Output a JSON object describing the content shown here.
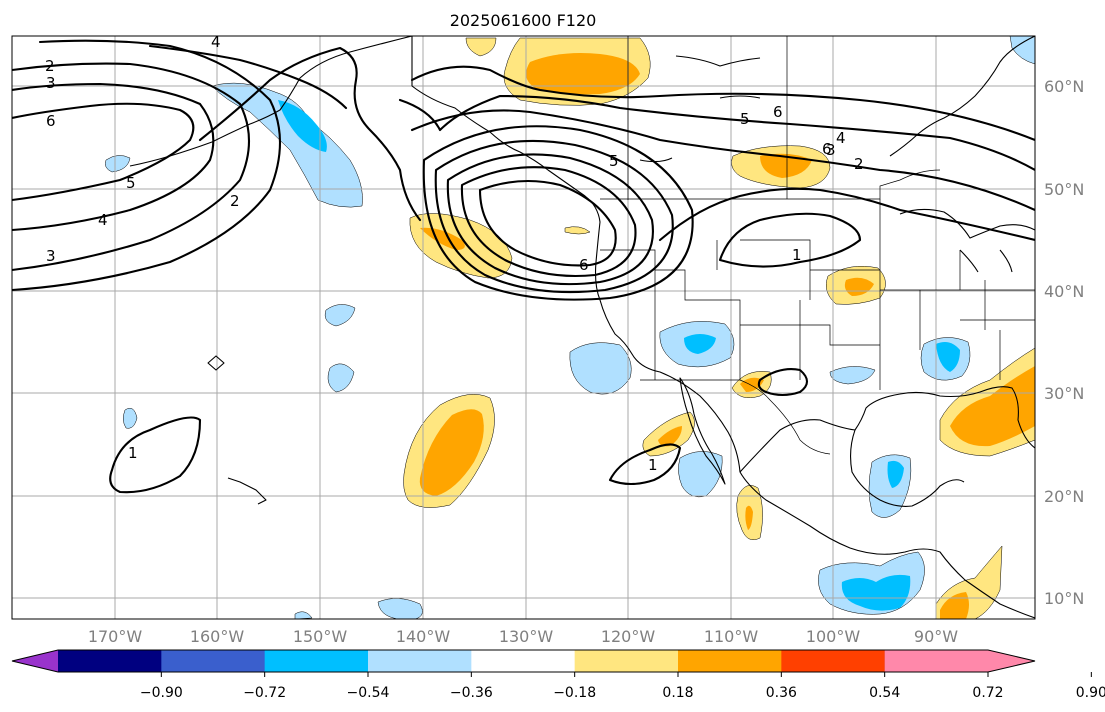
{
  "title": "2025061600 F120",
  "map": {
    "lat_labels": [
      "60°N",
      "50°N",
      "40°N",
      "30°N",
      "20°N",
      "10°N"
    ],
    "lon_labels": [
      "170°W",
      "160°W",
      "150°W",
      "140°W",
      "130°W",
      "120°W",
      "110°W",
      "100°W",
      "90°W"
    ],
    "gridlines": true,
    "contour_labels": [
      "4",
      "2",
      "3",
      "6",
      "5",
      "4",
      "3",
      "2",
      "5",
      "6",
      "5",
      "6",
      "4",
      "3",
      "2",
      "1",
      "6",
      "1",
      "1"
    ]
  },
  "colorbar": {
    "ticks": [
      "−0.90",
      "−0.72",
      "−0.54",
      "−0.36",
      "−0.18",
      "0.18",
      "0.36",
      "0.54",
      "0.72",
      "0.90"
    ],
    "colors": [
      "#9933cc",
      "#000080",
      "#3a5fcd",
      "#00bfff",
      "#b0e0ff",
      "#ffffff",
      "#ffe680",
      "#ffa500",
      "#ff4000",
      "#b22222",
      "#ff88aa"
    ],
    "extend": "both"
  },
  "colors": {
    "light_blue": "#b0e0ff",
    "mid_blue": "#00bfff",
    "yellow": "#ffe680",
    "orange": "#ffa500",
    "grid": "#a9a9a9",
    "axis_label": "#808080"
  }
}
